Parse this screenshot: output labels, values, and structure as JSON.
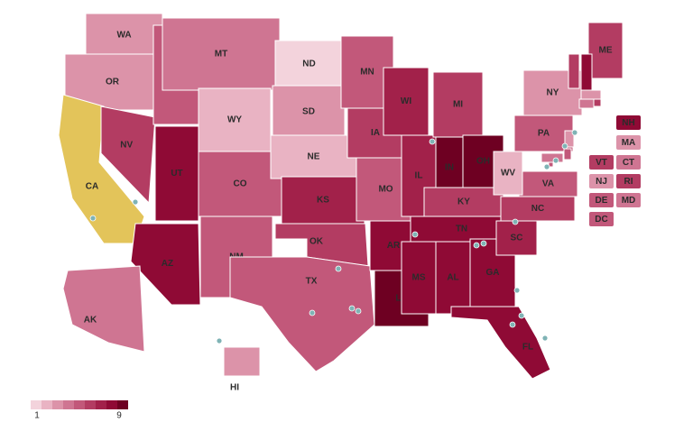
{
  "scale": {
    "min": 1,
    "max": 9,
    "colors": [
      "#f3d3dc",
      "#e9b3c3",
      "#dc93a9",
      "#cf7592",
      "#c2587a",
      "#b33c62",
      "#a2214a",
      "#8f0a35",
      "#6e0022"
    ],
    "no_data_color": "#e3c45a"
  },
  "states": [
    {
      "label": "WA",
      "value": 3
    },
    {
      "label": "OR",
      "value": 3
    },
    {
      "label": "CA",
      "value": null
    },
    {
      "label": "NV",
      "value": 6
    },
    {
      "label": "ID",
      "value": 5
    },
    {
      "label": "MT",
      "value": 4
    },
    {
      "label": "WY",
      "value": 2
    },
    {
      "label": "UT",
      "value": 8
    },
    {
      "label": "AZ",
      "value": 8
    },
    {
      "label": "CO",
      "value": 5
    },
    {
      "label": "NM",
      "value": 5
    },
    {
      "label": "ND",
      "value": 1
    },
    {
      "label": "SD",
      "value": 3
    },
    {
      "label": "NE",
      "value": 2
    },
    {
      "label": "KS",
      "value": 7
    },
    {
      "label": "OK",
      "value": 6
    },
    {
      "label": "TX",
      "value": 5
    },
    {
      "label": "MN",
      "value": 5
    },
    {
      "label": "IA",
      "value": 6
    },
    {
      "label": "MO",
      "value": 5
    },
    {
      "label": "AR",
      "value": 8
    },
    {
      "label": "LA",
      "value": 9
    },
    {
      "label": "WI",
      "value": 7
    },
    {
      "label": "IL",
      "value": 7
    },
    {
      "label": "MI",
      "value": 6
    },
    {
      "label": "IN",
      "value": 9
    },
    {
      "label": "OH",
      "value": 9
    },
    {
      "label": "KY",
      "value": 6
    },
    {
      "label": "TN",
      "value": 8
    },
    {
      "label": "MS",
      "value": 8
    },
    {
      "label": "AL",
      "value": 8
    },
    {
      "label": "GA",
      "value": 8
    },
    {
      "label": "FL",
      "value": 8
    },
    {
      "label": "SC",
      "value": 7
    },
    {
      "label": "NC",
      "value": 6
    },
    {
      "label": "VA",
      "value": 5
    },
    {
      "label": "WV",
      "value": 2
    },
    {
      "label": "PA",
      "value": 5
    },
    {
      "label": "NY",
      "value": 3
    },
    {
      "label": "ME",
      "value": 6
    },
    {
      "label": "AK",
      "value": 4
    },
    {
      "label": "HI",
      "value": 3
    },
    {
      "label": "NH",
      "value": 8
    },
    {
      "label": "MA",
      "value": 3
    },
    {
      "label": "VT",
      "value": 6
    },
    {
      "label": "CT",
      "value": 4
    },
    {
      "label": "NJ",
      "value": 3
    },
    {
      "label": "RI",
      "value": 6
    },
    {
      "label": "DE",
      "value": 5
    },
    {
      "label": "MD",
      "value": 4
    },
    {
      "label": "DC",
      "value": 5
    }
  ]
}
